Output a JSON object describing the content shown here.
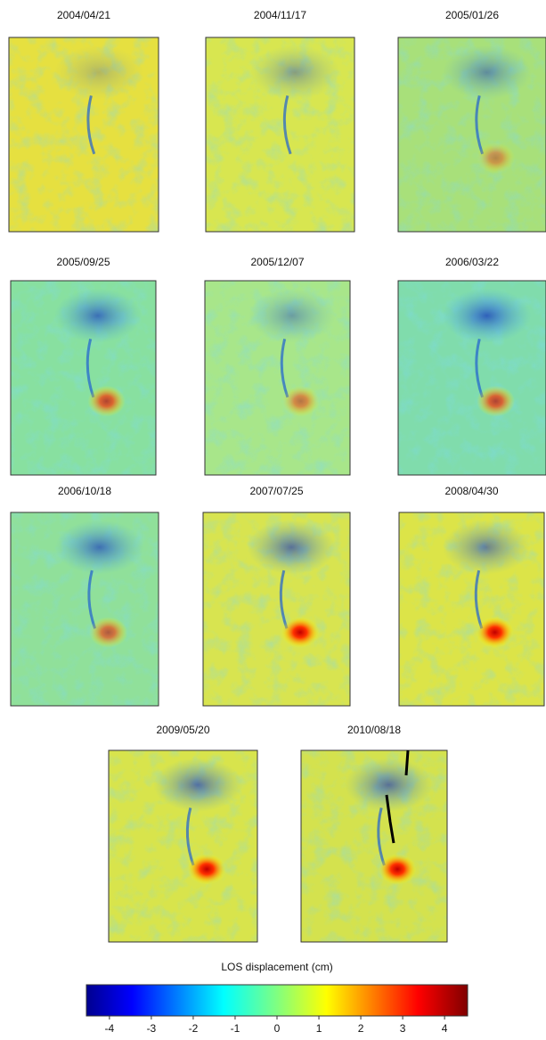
{
  "panels": [
    {
      "date": "2004/04/21"
    },
    {
      "date": "2004/11/17"
    },
    {
      "date": "2005/01/26"
    },
    {
      "date": "2005/09/25"
    },
    {
      "date": "2005/12/07"
    },
    {
      "date": "2006/03/22"
    },
    {
      "date": "2006/10/18"
    },
    {
      "date": "2007/07/25"
    },
    {
      "date": "2008/04/30"
    },
    {
      "date": "2009/05/20"
    },
    {
      "date": "2010/08/18"
    }
  ],
  "colorbar": {
    "label": "LOS displacement (cm)",
    "lim": [
      -4.55,
      4.55
    ],
    "ticks": [
      -4,
      -3,
      -2,
      -1,
      0,
      1,
      2,
      3,
      4
    ]
  }
}
